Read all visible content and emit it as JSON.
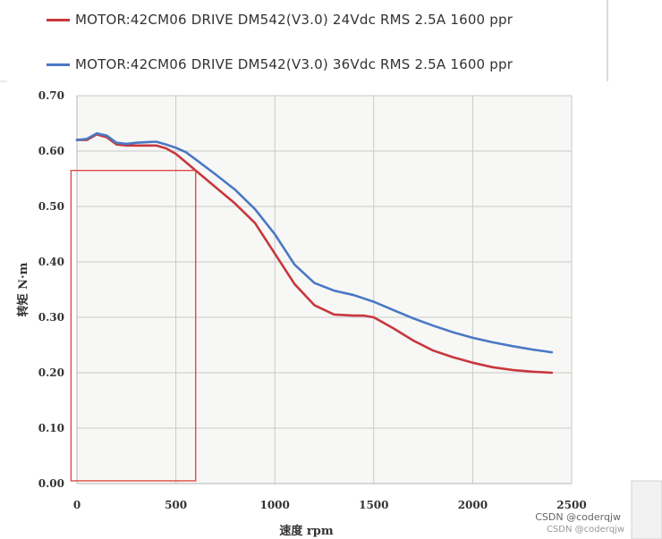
{
  "chart_data": {
    "type": "line",
    "title": "",
    "xlabel": "速度 rpm",
    "ylabel": "转矩 N·m",
    "xlim": [
      0,
      2500
    ],
    "ylim": [
      0,
      0.7
    ],
    "x_ticks": [
      "0",
      "500",
      "1000",
      "1500",
      "2000",
      "2500"
    ],
    "y_ticks": [
      "0.00",
      "0.10",
      "0.20",
      "0.30",
      "0.40",
      "0.50",
      "0.60",
      "0.70"
    ],
    "grid": true,
    "legend_position": "top-left",
    "series": [
      {
        "name": "MOTOR:42CM06 DRIVE DM542(V3.0)  24Vdc RMS 2.5A 1600 ppr",
        "color": "#c8373c",
        "points": [
          [
            0,
            0.62
          ],
          [
            50,
            0.62
          ],
          [
            100,
            0.63
          ],
          [
            150,
            0.625
          ],
          [
            200,
            0.612
          ],
          [
            250,
            0.61
          ],
          [
            300,
            0.61
          ],
          [
            350,
            0.61
          ],
          [
            400,
            0.61
          ],
          [
            450,
            0.605
          ],
          [
            500,
            0.595
          ],
          [
            550,
            0.58
          ],
          [
            600,
            0.565
          ],
          [
            700,
            0.535
          ],
          [
            800,
            0.505
          ],
          [
            900,
            0.47
          ],
          [
            1000,
            0.415
          ],
          [
            1100,
            0.36
          ],
          [
            1200,
            0.322
          ],
          [
            1300,
            0.305
          ],
          [
            1400,
            0.303
          ],
          [
            1450,
            0.303
          ],
          [
            1500,
            0.3
          ],
          [
            1600,
            0.28
          ],
          [
            1700,
            0.258
          ],
          [
            1800,
            0.24
          ],
          [
            1900,
            0.228
          ],
          [
            2000,
            0.218
          ],
          [
            2100,
            0.21
          ],
          [
            2200,
            0.205
          ],
          [
            2300,
            0.202
          ],
          [
            2400,
            0.2
          ]
        ]
      },
      {
        "name": "MOTOR:42CM06 DRIVE DM542(V3.0)  36Vdc RMS 2.5A 1600 ppr",
        "color": "#4a78c4",
        "points": [
          [
            0,
            0.62
          ],
          [
            50,
            0.622
          ],
          [
            100,
            0.632
          ],
          [
            150,
            0.628
          ],
          [
            200,
            0.615
          ],
          [
            250,
            0.613
          ],
          [
            300,
            0.615
          ],
          [
            350,
            0.616
          ],
          [
            400,
            0.617
          ],
          [
            450,
            0.612
          ],
          [
            500,
            0.606
          ],
          [
            550,
            0.598
          ],
          [
            600,
            0.585
          ],
          [
            700,
            0.558
          ],
          [
            800,
            0.53
          ],
          [
            900,
            0.495
          ],
          [
            1000,
            0.45
          ],
          [
            1100,
            0.395
          ],
          [
            1200,
            0.362
          ],
          [
            1300,
            0.348
          ],
          [
            1400,
            0.34
          ],
          [
            1500,
            0.328
          ],
          [
            1600,
            0.313
          ],
          [
            1700,
            0.298
          ],
          [
            1800,
            0.285
          ],
          [
            1900,
            0.273
          ],
          [
            2000,
            0.263
          ],
          [
            2100,
            0.255
          ],
          [
            2200,
            0.248
          ],
          [
            2300,
            0.242
          ],
          [
            2400,
            0.237
          ]
        ]
      }
    ],
    "annotations": [
      {
        "type": "highlight-box",
        "color": "#e0403a",
        "x_range": [
          -30,
          600
        ],
        "y_range": [
          0.005,
          0.565
        ]
      }
    ]
  },
  "watermark": {
    "primary": "CSDN @coderqjw",
    "secondary": "CSDN @coderqjw"
  }
}
